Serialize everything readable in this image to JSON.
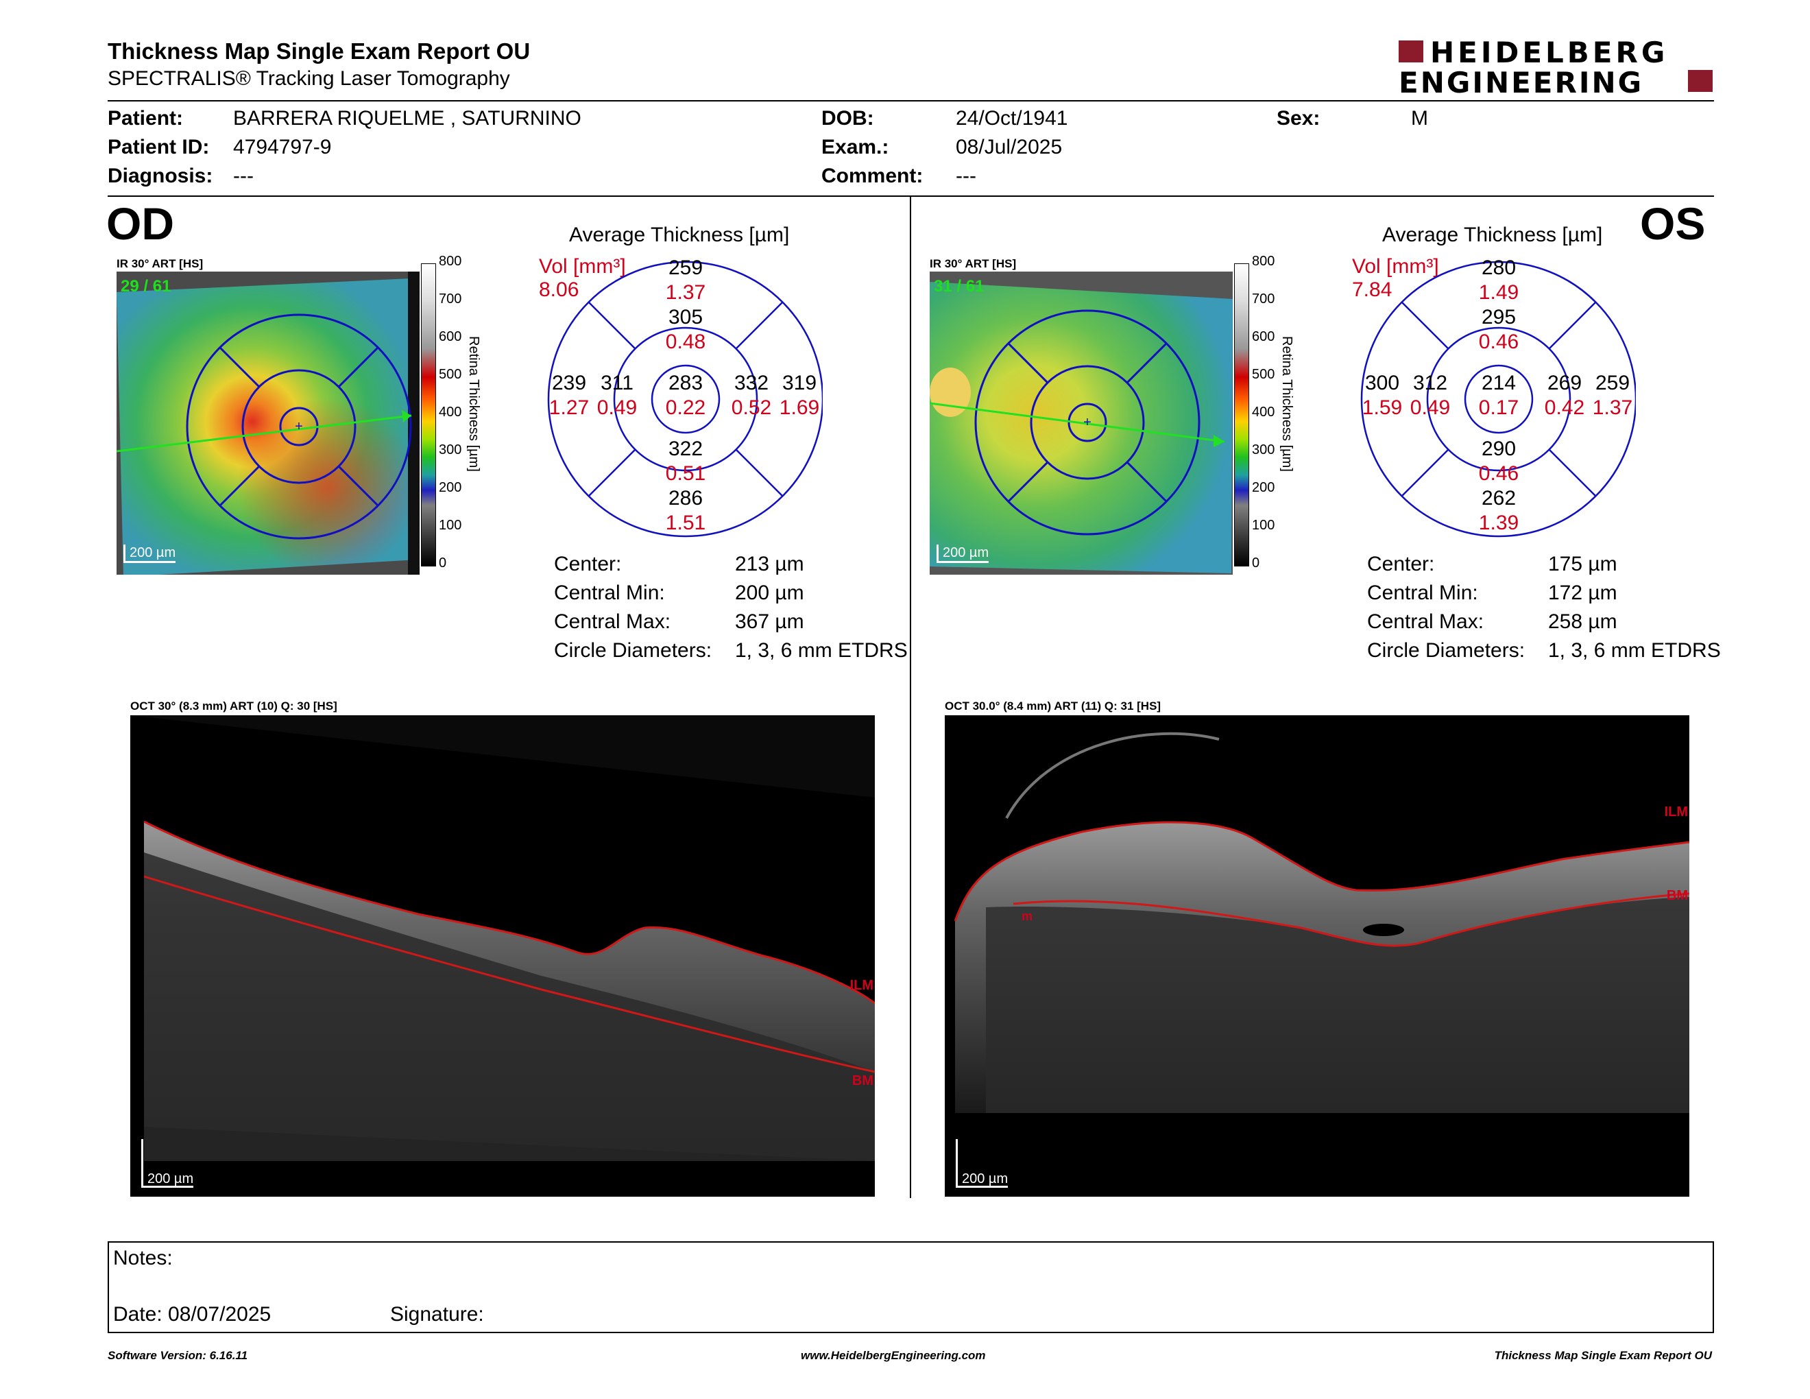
{
  "header": {
    "title": "Thickness Map Single Exam Report OU",
    "subtitle": "SPECTRALIS® Tracking Laser Tomography",
    "logo_line1": "HEIDELBERG",
    "logo_line2": "ENGINEERING",
    "brand_color": "#8b1a2b"
  },
  "patient": {
    "patient_label": "Patient:",
    "patient_value": "BARRERA RIQUELME , SATURNINO",
    "id_label": "Patient ID:",
    "id_value": "4794797-9",
    "diagnosis_label": "Diagnosis:",
    "diagnosis_value": "---",
    "dob_label": "DOB:",
    "dob_value": "24/Oct/1941",
    "exam_label": "Exam.:",
    "exam_value": "08/Jul/2025",
    "comment_label": "Comment:",
    "comment_value": "---",
    "sex_label": "Sex:",
    "sex_value": "M"
  },
  "colorbar": {
    "ticks": [
      "800",
      "700",
      "600",
      "500",
      "400",
      "300",
      "200",
      "100",
      "0"
    ],
    "label": "Retina Thickness [µm]"
  },
  "od": {
    "eye": "OD",
    "ir_label": "IR 30° ART [HS]",
    "counter": "29 / 61",
    "scale": "200 µm",
    "grid_title": "Average Thickness [µm]",
    "vol_label": "Vol [mm³]",
    "vol_value": "8.06",
    "sectors": {
      "outer_sup": {
        "t": "259",
        "v": "1.37"
      },
      "inner_sup": {
        "t": "305",
        "v": "0.48"
      },
      "outer_temp": {
        "t": "239",
        "v": "1.27"
      },
      "inner_temp": {
        "t": "311",
        "v": "0.49"
      },
      "center": {
        "t": "283",
        "v": "0.22"
      },
      "inner_nasal": {
        "t": "332",
        "v": "0.52"
      },
      "outer_nasal": {
        "t": "319",
        "v": "1.69"
      },
      "inner_inf": {
        "t": "322",
        "v": "0.51"
      },
      "outer_inf": {
        "t": "286",
        "v": "1.51"
      }
    },
    "stats": [
      {
        "label": "Center:",
        "value": "213 µm"
      },
      {
        "label": "Central Min:",
        "value": "200 µm"
      },
      {
        "label": "Central Max:",
        "value": "367 µm"
      },
      {
        "label": "Circle Diameters:",
        "value": "1, 3, 6 mm ETDRS"
      }
    ],
    "oct_label": "OCT 30° (8.3 mm) ART (10) Q: 30 [HS]",
    "oct_scale": "200 µm",
    "ilm": "ILM",
    "bm": "BM"
  },
  "os": {
    "eye": "OS",
    "ir_label": "IR 30° ART [HS]",
    "counter": "31 / 61",
    "scale": "200 µm",
    "grid_title": "Average Thickness [µm]",
    "vol_label": "Vol [mm³]",
    "vol_value": "7.84",
    "sectors": {
      "outer_sup": {
        "t": "280",
        "v": "1.49"
      },
      "inner_sup": {
        "t": "295",
        "v": "0.46"
      },
      "outer_temp": {
        "t": "300",
        "v": "1.59"
      },
      "inner_temp": {
        "t": "312",
        "v": "0.49"
      },
      "center": {
        "t": "214",
        "v": "0.17"
      },
      "inner_nasal": {
        "t": "269",
        "v": "0.42"
      },
      "outer_nasal": {
        "t": "259",
        "v": "1.37"
      },
      "inner_inf": {
        "t": "290",
        "v": "0.46"
      },
      "outer_inf": {
        "t": "262",
        "v": "1.39"
      }
    },
    "stats": [
      {
        "label": "Center:",
        "value": "175 µm"
      },
      {
        "label": "Central Min:",
        "value": "172 µm"
      },
      {
        "label": "Central Max:",
        "value": "258 µm"
      },
      {
        "label": "Circle Diameters:",
        "value": "1, 3, 6 mm ETDRS"
      }
    ],
    "oct_label": "OCT 30.0° (8.4 mm) ART (11) Q: 31 [HS]",
    "oct_scale": "200 µm",
    "ilm": "ILM",
    "bm": "BM",
    "m_mark": "m"
  },
  "notes": {
    "notes_label": "Notes:",
    "date_label": "Date: 08/07/2025",
    "signature_label": "Signature:"
  },
  "footer": {
    "software": "Software Version: 6.16.11",
    "website": "www.HeidelbergEngineering.com",
    "report": "Thickness Map Single Exam Report OU"
  }
}
